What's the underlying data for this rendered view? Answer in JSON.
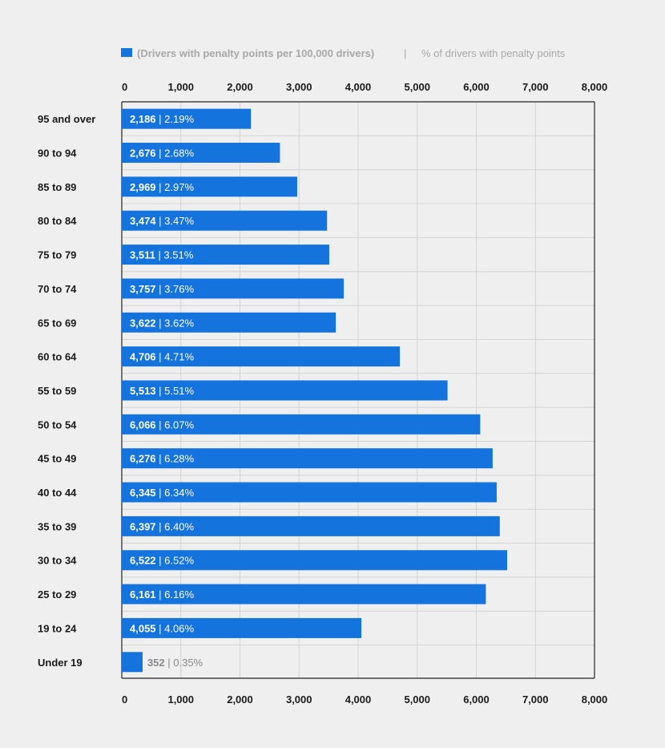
{
  "chart_data": {
    "type": "bar",
    "orientation": "horizontal",
    "legend": {
      "placement": "top",
      "primary_label": "(Drivers with penalty points per 100,000 drivers)",
      "separator": "|",
      "secondary_label": "% of drivers with penalty points"
    },
    "categories": [
      "95 and over",
      "90 to 94",
      "85 to 89",
      "80 to 84",
      "75 to 79",
      "70 to 74",
      "65 to 69",
      "60 to 64",
      "55 to 59",
      "50 to 54",
      "45 to 49",
      "40 to 44",
      "35 to 39",
      "30 to 34",
      "25 to 29",
      "19 to 24",
      "Under 19"
    ],
    "series": [
      {
        "name": "(Drivers with penalty points per 100,000 drivers)",
        "values": [
          2186,
          2676,
          2969,
          3474,
          3511,
          3757,
          3622,
          4706,
          5513,
          6066,
          6276,
          6345,
          6397,
          6522,
          6161,
          4055,
          352
        ],
        "value_labels": [
          "2,186",
          "2,676",
          "2,969",
          "3,474",
          "3,511",
          "3,757",
          "3,622",
          "4,706",
          "5,513",
          "6,066",
          "6,276",
          "6,345",
          "6,397",
          "6,522",
          "6,161",
          "4,055",
          "352"
        ]
      },
      {
        "name": "% of drivers with penalty points",
        "value_labels": [
          "2.19%",
          "2.68%",
          "2.97%",
          "3.47%",
          "3.51%",
          "3.76%",
          "3.62%",
          "4.71%",
          "5.51%",
          "6.07%",
          "6.28%",
          "6.34%",
          "6.40%",
          "6.52%",
          "6.16%",
          "4.06%",
          "0.35%"
        ]
      }
    ],
    "xlim": [
      0,
      8000
    ],
    "tick_values": [
      0,
      1000,
      2000,
      3000,
      4000,
      5000,
      6000,
      7000,
      8000
    ],
    "tick_labels": [
      "0",
      "1,000",
      "2,000",
      "3,000",
      "4,000",
      "5,000",
      "6,000",
      "7,000",
      "8,000"
    ],
    "axis_ticks_top_and_bottom": true,
    "grid": true,
    "colors": {
      "bar": "#1473dc",
      "background": "#efefef",
      "grid": "#d4d4d4",
      "axis": "#222222",
      "label_inside": "#ffffff",
      "label_outside": "#8a8a8a",
      "legend_text": "#a8a8a8"
    }
  }
}
